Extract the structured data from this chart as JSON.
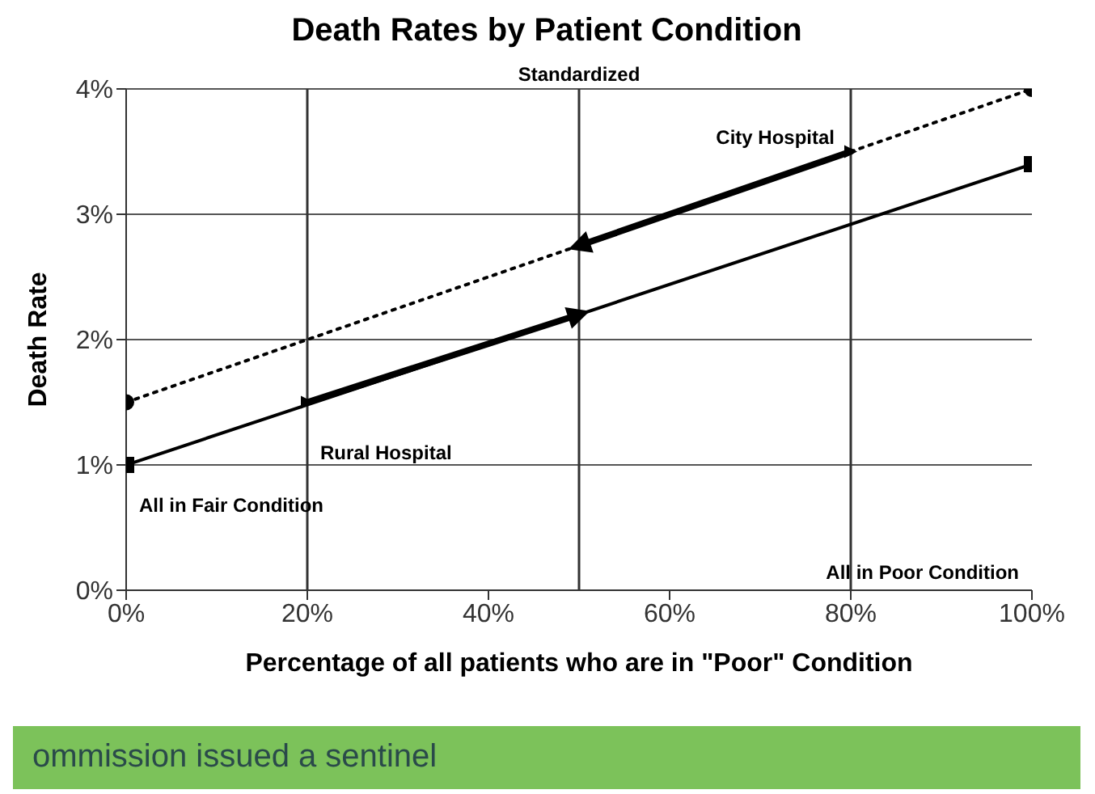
{
  "chart_data": {
    "type": "line",
    "title": "Death Rates by Patient Condition",
    "xlabel": "Percentage of all patients who are in \"Poor\" Condition",
    "ylabel": "Death Rate",
    "xlim": [
      0,
      100
    ],
    "xticks": [
      {
        "value": 0,
        "label": "0%"
      },
      {
        "value": 20,
        "label": "20%"
      },
      {
        "value": 40,
        "label": "40%"
      },
      {
        "value": 60,
        "label": "60%"
      },
      {
        "value": 80,
        "label": "80%"
      },
      {
        "value": 100,
        "label": "100%"
      }
    ],
    "ylim": [
      0,
      4
    ],
    "yticks": [
      {
        "value": 0,
        "label": "0%"
      },
      {
        "value": 1,
        "label": "1%"
      },
      {
        "value": 2,
        "label": "2%"
      },
      {
        "value": 3,
        "label": "3%"
      },
      {
        "value": 4,
        "label": "4%"
      }
    ],
    "grid": "y",
    "series": [
      {
        "x": [
          0,
          100
        ],
        "values": [
          1.5,
          4.0
        ],
        "color": "#000000",
        "line_style": "dotted",
        "marker": "circle"
      },
      {
        "x": [
          0,
          100
        ],
        "values": [
          1.0,
          3.4
        ],
        "color": "#000000",
        "line_style": "solid",
        "marker": "square"
      },
      {
        "x": [
          80,
          50
        ],
        "values": [
          3.5,
          2.75
        ],
        "color": "#000000",
        "line_style": "solid",
        "marker": "triangle"
      },
      {
        "x": [
          20,
          50
        ],
        "values": [
          1.5,
          2.2
        ],
        "color": "#000000",
        "line_style": "solid",
        "marker": "triangle"
      }
    ],
    "ref_lines": [
      {
        "axis": "x",
        "value": 20,
        "label": null,
        "color": "#333333"
      },
      {
        "axis": "x",
        "value": 50,
        "label": "Standardized",
        "color": "#333333"
      },
      {
        "axis": "x",
        "value": 80,
        "label": null,
        "color": "#333333"
      }
    ],
    "annotations": [
      {
        "text": "City Hospital",
        "x": 80,
        "y": 3.5
      },
      {
        "text": "Rural Hospital",
        "x": 20,
        "y": 1.5
      },
      {
        "text": "All in Fair Condition",
        "x": 0,
        "y": 1.0
      },
      "All in Poor Condition",
      "ommission issued a sentinel"
    ]
  }
}
